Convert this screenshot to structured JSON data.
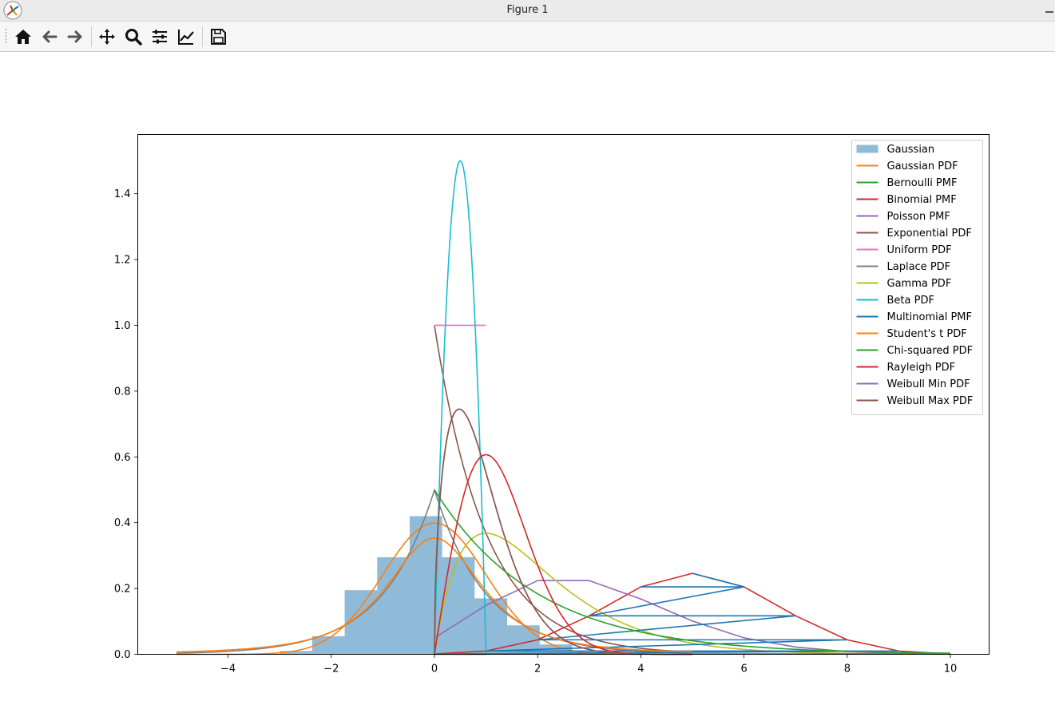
{
  "window": {
    "title": "Figure 1"
  },
  "toolbar": {
    "buttons": [
      {
        "name": "home-icon"
      },
      {
        "name": "back-arrow-icon"
      },
      {
        "name": "forward-arrow-icon"
      },
      {
        "name": "pan-move-icon"
      },
      {
        "name": "zoom-magnifier-icon"
      },
      {
        "name": "configure-subplots-icon"
      },
      {
        "name": "edit-axis-icon"
      },
      {
        "name": "save-floppy-icon"
      }
    ]
  },
  "chart_data": {
    "type": "line",
    "title": "",
    "xlabel": "",
    "ylabel": "",
    "xlim": [
      -5.75,
      10.75
    ],
    "ylim": [
      0,
      1.58
    ],
    "xticks": [
      -4,
      -2,
      0,
      2,
      4,
      6,
      8,
      10
    ],
    "yticks": [
      0.0,
      0.2,
      0.4,
      0.6,
      0.8,
      1.0,
      1.2,
      1.4
    ],
    "xtick_labels": [
      "−4",
      "−2",
      "0",
      "2",
      "4",
      "6",
      "8",
      "10"
    ],
    "ytick_labels": [
      "0.0",
      "0.2",
      "0.4",
      "0.6",
      "0.8",
      "1.0",
      "1.2",
      "1.4"
    ],
    "grid": false,
    "legend_position": "upper right",
    "histogram": {
      "name": "Gaussian",
      "color": "#1f77b4",
      "alpha": 0.5,
      "bins": [
        {
          "x0": -3.0,
          "x1": -2.37,
          "height": 0.01
        },
        {
          "x0": -2.37,
          "x1": -1.74,
          "height": 0.055
        },
        {
          "x0": -1.74,
          "x1": -1.11,
          "height": 0.195
        },
        {
          "x0": -1.11,
          "x1": -0.48,
          "height": 0.295
        },
        {
          "x0": -0.48,
          "x1": 0.15,
          "height": 0.42
        },
        {
          "x0": 0.15,
          "x1": 0.78,
          "height": 0.295
        },
        {
          "x0": 0.78,
          "x1": 1.41,
          "height": 0.17
        },
        {
          "x0": 1.41,
          "x1": 2.04,
          "height": 0.088
        },
        {
          "x0": 2.04,
          "x1": 2.67,
          "height": 0.03
        },
        {
          "x0": 2.67,
          "x1": 3.3,
          "height": 0.008
        }
      ]
    },
    "series": [
      {
        "name": "Gaussian PDF",
        "color": "#ff7f0e",
        "kind": "normal",
        "params": {
          "mu": 0,
          "sigma": 1
        },
        "range": [
          -5,
          5
        ]
      },
      {
        "name": "Bernoulli PMF",
        "color": "#2ca02c",
        "kind": "points",
        "x": [
          0,
          1
        ],
        "y": [
          0.0,
          0.0
        ]
      },
      {
        "name": "Binomial PMF",
        "color": "#d62728",
        "kind": "points",
        "x": [
          0,
          1,
          2,
          3,
          4,
          5,
          6,
          7,
          8,
          9,
          10
        ],
        "y": [
          0.001,
          0.01,
          0.044,
          0.117,
          0.205,
          0.246,
          0.205,
          0.117,
          0.044,
          0.01,
          0.001
        ]
      },
      {
        "name": "Poisson PMF",
        "color": "#9467bd",
        "kind": "points",
        "x": [
          0,
          1,
          2,
          3,
          4,
          5,
          6,
          7,
          8,
          9,
          10
        ],
        "y": [
          0.05,
          0.149,
          0.224,
          0.224,
          0.168,
          0.101,
          0.05,
          0.022,
          0.008,
          0.003,
          0.001
        ]
      },
      {
        "name": "Exponential PDF",
        "color": "#8c564b",
        "kind": "exponential",
        "params": {
          "lambda": 1
        },
        "range": [
          0,
          5
        ]
      },
      {
        "name": "Uniform PDF",
        "color": "#e377c2",
        "kind": "points",
        "x": [
          0,
          1
        ],
        "y": [
          1.0,
          1.0
        ]
      },
      {
        "name": "Laplace PDF",
        "color": "#7f7f7f",
        "kind": "laplace",
        "params": {
          "mu": 0,
          "b": 1
        },
        "range": [
          -5,
          5
        ]
      },
      {
        "name": "Gamma PDF",
        "color": "#bcbd22",
        "kind": "gamma",
        "params": {
          "k": 2,
          "theta": 1
        },
        "range": [
          0,
          10
        ]
      },
      {
        "name": "Beta PDF",
        "color": "#17becf",
        "kind": "beta",
        "params": {
          "a": 2,
          "b": 2
        },
        "range": [
          0,
          1
        ]
      },
      {
        "name": "Multinomial PMF",
        "color": "#1f77b4",
        "kind": "points",
        "x": [
          5,
          6,
          4,
          6,
          3,
          7,
          2,
          8,
          1,
          9,
          0,
          10
        ],
        "y": [
          0.246,
          0.205,
          0.205,
          0.205,
          0.117,
          0.117,
          0.044,
          0.044,
          0.01,
          0.01,
          0.001,
          0.001
        ]
      },
      {
        "name": "Student's t PDF",
        "color": "#ff7f0e",
        "kind": "student_t",
        "params": {
          "df": 2
        },
        "range": [
          -5,
          5
        ]
      },
      {
        "name": "Chi-squared PDF",
        "color": "#2ca02c",
        "kind": "chi2",
        "params": {
          "k": 2
        },
        "range": [
          0,
          10
        ]
      },
      {
        "name": "Rayleigh PDF",
        "color": "#d62728",
        "kind": "rayleigh",
        "params": {
          "sigma": 1
        },
        "range": [
          0,
          5
        ]
      },
      {
        "name": "Weibull Min PDF",
        "color": "#9467bd",
        "kind": "weibull_min",
        "params": {
          "c": 1.5
        },
        "range": [
          0,
          5
        ]
      },
      {
        "name": "Weibull Max PDF",
        "color": "#8c564b",
        "kind": "weibull_max",
        "params": {
          "c": 1.5
        },
        "range": [
          0,
          5
        ]
      }
    ]
  }
}
